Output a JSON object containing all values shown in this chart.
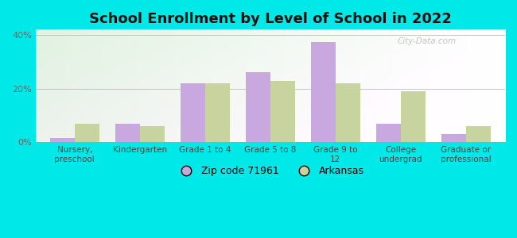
{
  "title": "School Enrollment by Level of School in 2022",
  "categories": [
    "Nursery,\npreschool",
    "Kindergarten",
    "Grade 1 to 4",
    "Grade 5 to 8",
    "Grade 9 to\n12",
    "College\nundergrad",
    "Graduate or\nprofessional"
  ],
  "zip_values": [
    1.5,
    7.0,
    22.0,
    26.0,
    37.5,
    7.0,
    3.0
  ],
  "ar_values": [
    7.0,
    6.0,
    22.0,
    23.0,
    22.0,
    19.0,
    6.0
  ],
  "zip_color": "#c9a8e0",
  "ar_color": "#c8d4a0",
  "zip_label": "Zip code 71961",
  "ar_label": "Arkansas",
  "background_outer": "#00e8e8",
  "ylim": [
    0,
    42
  ],
  "yticks": [
    0,
    20,
    40
  ],
  "ytick_labels": [
    "0%",
    "20%",
    "40%"
  ],
  "bar_width": 0.38,
  "title_fontsize": 13
}
